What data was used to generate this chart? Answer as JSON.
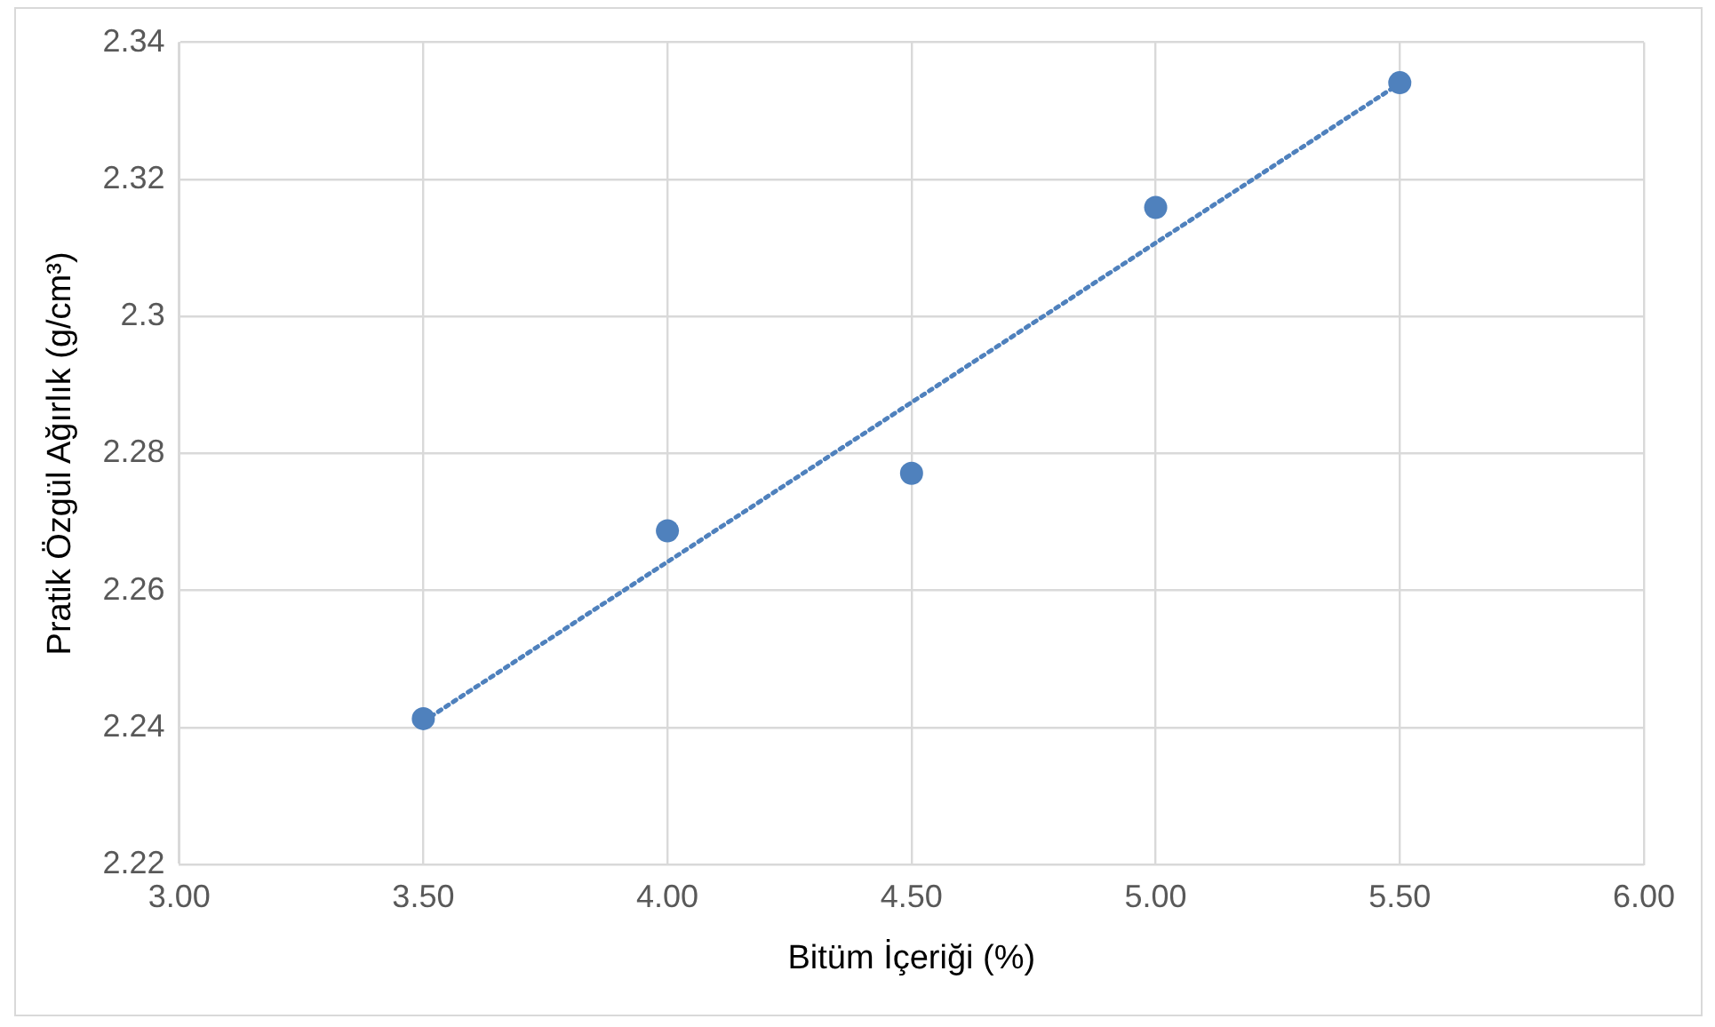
{
  "chart_data": {
    "type": "scatter",
    "xlabel": "Bitüm İçeriği (%)",
    "ylabel": "Pratik Özgül Ağırlık (g/cm³)",
    "xlim": [
      3,
      6
    ],
    "xticks": [
      {
        "value": 3,
        "label": "3.00"
      },
      {
        "value": 3.5,
        "label": "3.50"
      },
      {
        "value": 4,
        "label": "4.00"
      },
      {
        "value": 4.5,
        "label": "4.50"
      },
      {
        "value": 5,
        "label": "5.00"
      },
      {
        "value": 5.5,
        "label": "5.50"
      },
      {
        "value": 6,
        "label": "6.00"
      }
    ],
    "ylim": [
      2.22,
      2.34
    ],
    "yticks": [
      2.22,
      2.24,
      2.26,
      2.28,
      2.3,
      2.32,
      2.34
    ],
    "grid": true,
    "legend": false,
    "marker": "circle",
    "series": [
      {
        "color": "#4f81bd",
        "x": [
          3.5,
          4,
          4.5,
          5,
          5.5
        ],
        "values": [
          2.2413,
          2.2687,
          2.2771,
          2.3159,
          2.3341
        ]
      },
      {
        "type": "line",
        "color": "#4f81bd",
        "line_style": "dotted",
        "marker": "none",
        "x": [
          3.5,
          5.5
        ],
        "values": [
          2.2409,
          2.334
        ]
      }
    ]
  }
}
